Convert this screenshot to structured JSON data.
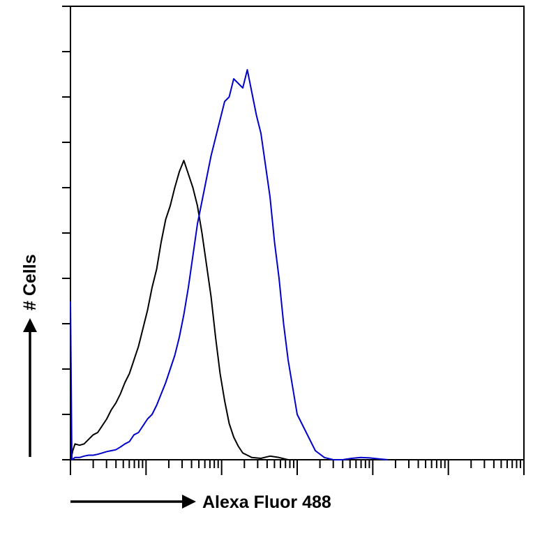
{
  "chart_data": {
    "type": "line",
    "title": "",
    "xlabel": "Alexa Fluor 488",
    "ylabel": "# Cells",
    "x_scale": "log",
    "xlim": [
      0,
      100
    ],
    "ylim": [
      0,
      100
    ],
    "grid": false,
    "legend": "none",
    "series": [
      {
        "color": "#000000",
        "x": [
          0,
          0.2,
          0.5,
          1,
          2,
          3,
          4,
          5,
          6,
          7,
          8,
          9,
          10,
          11,
          12,
          13,
          14,
          15,
          16,
          17,
          18,
          19,
          20,
          21,
          22,
          23,
          24,
          25,
          26,
          27,
          28,
          29,
          30,
          31,
          32,
          33,
          34,
          35,
          36,
          37,
          38,
          39,
          40,
          42,
          44,
          46,
          48
        ],
        "values": [
          0,
          0.5,
          2,
          3.5,
          3.2,
          3.5,
          4.5,
          5.5,
          6,
          7.5,
          9,
          11,
          12.5,
          14.5,
          17,
          19,
          22,
          25,
          29,
          33,
          38,
          42,
          48,
          53,
          56,
          60,
          63.5,
          66,
          63,
          60,
          56,
          50,
          43,
          36,
          27,
          19,
          13,
          8,
          5,
          3,
          1.5,
          1,
          0.5,
          0.3,
          0.8,
          0.5,
          0
        ]
      },
      {
        "color": "#0000cc",
        "x": [
          0,
          0.3,
          1,
          2,
          3,
          4,
          5,
          6,
          7,
          8,
          9,
          10,
          11,
          12,
          13,
          14,
          15,
          16,
          17,
          18,
          19,
          20,
          21,
          22,
          23,
          24,
          25,
          26,
          27,
          28,
          29,
          30,
          31,
          32,
          33,
          34,
          35,
          36,
          37,
          38,
          39,
          40,
          41,
          42,
          43,
          44,
          45,
          46,
          47,
          48,
          50,
          52,
          54,
          56,
          58,
          60,
          62,
          64,
          66,
          68,
          70
        ],
        "values": [
          35,
          0,
          0.5,
          0.5,
          0.8,
          1,
          1,
          1.2,
          1.5,
          1.8,
          2,
          2.2,
          2.8,
          3.5,
          4,
          5.5,
          6,
          7.5,
          9,
          10,
          12,
          14.5,
          17,
          20,
          23,
          27,
          32,
          38,
          45,
          52,
          57,
          62,
          67,
          71,
          75,
          79,
          80,
          84,
          83,
          82,
          86,
          81,
          76,
          72,
          65,
          58,
          48,
          40,
          30,
          22,
          10,
          6,
          2,
          0.5,
          0,
          0,
          0.3,
          0.5,
          0.4,
          0.2,
          0
        ]
      }
    ]
  }
}
